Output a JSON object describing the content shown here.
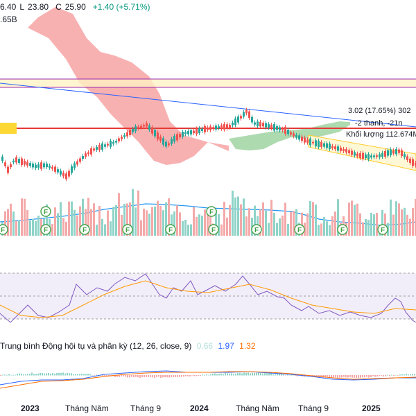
{
  "legend": {
    "open": "6.40",
    "low_label": "L",
    "low": "23.80",
    "close_label": "C",
    "close": "25.90",
    "change": "+1.40 (+5.71%)",
    "volume_partial": ".65B"
  },
  "annotations": {
    "measure_text": "3.02 (17.65%) 302",
    "bars_text": "-2 thanh, -21n",
    "volume_text": "Khối lượng 112.674M"
  },
  "macd": {
    "title": "Trung bình Động hội tụ và phân kỳ (12, 26, close, 9)",
    "hist": "0.66",
    "macd": "1.97",
    "signal": "1.32",
    "colors": {
      "hist": "#b2dfdb",
      "macd": "#2962ff",
      "signal": "#ff6d00"
    }
  },
  "x_axis": {
    "labels": [
      "2023",
      "Tháng Năm",
      "Tháng 9",
      "2024",
      "Tháng Năm",
      "Tháng 9",
      "2025"
    ]
  },
  "markers": {
    "label": "F"
  },
  "colors": {
    "up": "#26a69a",
    "down": "#ef5350",
    "cloud_bear": "#f7a9a9",
    "cloud_bull": "#a5d6a7",
    "rsi": "#7e57c2",
    "rsi_ma": "#ff9800",
    "trendline": "#2962ff",
    "volume_ma": "#2196f3"
  }
}
